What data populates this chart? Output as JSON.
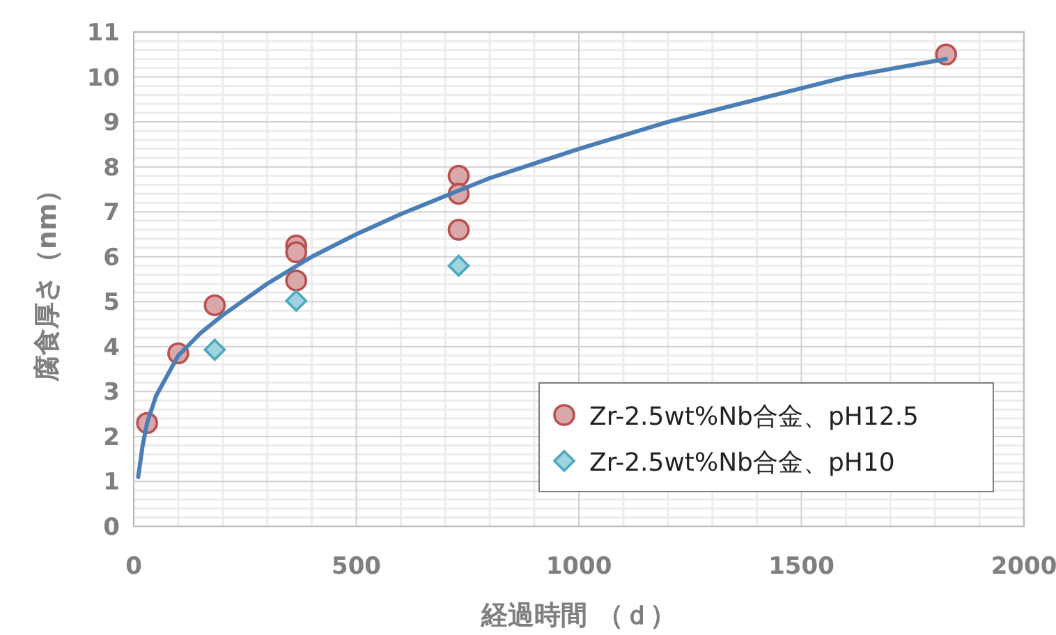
{
  "chart_data": {
    "type": "scatter",
    "xlabel": "経過時間 （ｄ）",
    "ylabel": "腐食厚さ（nm）",
    "xlim": [
      0,
      2000
    ],
    "xticks": [
      0,
      500,
      1000,
      1500,
      2000
    ],
    "ylim": [
      0,
      11
    ],
    "yticks": [
      0,
      1,
      2,
      3,
      4,
      5,
      6,
      7,
      8,
      9,
      10,
      11
    ],
    "grid": true,
    "legend": "bottom right",
    "series": [
      {
        "name": "Zr-2.5wt%Nb合金、pH12.5",
        "color": "#d9a8aa",
        "marker": "circle",
        "x": [
          30,
          100,
          182,
          365,
          365,
          365,
          730,
          730,
          730,
          1825
        ],
        "values": [
          2.3,
          3.85,
          4.92,
          6.25,
          6.1,
          5.47,
          7.8,
          7.4,
          6.6,
          10.5
        ]
      },
      {
        "name": "Zr-2.5wt%Nb合金、pH10",
        "color": "#9fd3de",
        "marker": "diamond",
        "x": [
          182,
          365,
          730
        ],
        "values": [
          3.93,
          5.02,
          5.8
        ]
      },
      {
        "type": "line",
        "color": "#4a7eb5",
        "marker": "none",
        "x": [
          10,
          20,
          30,
          50,
          100,
          150,
          200,
          300,
          400,
          500,
          600,
          700,
          800,
          1000,
          1200,
          1400,
          1600,
          1825
        ],
        "values": [
          1.1,
          1.8,
          2.3,
          2.9,
          3.8,
          4.3,
          4.7,
          5.4,
          6.0,
          6.5,
          6.95,
          7.35,
          7.75,
          8.4,
          9.0,
          9.5,
          10.0,
          10.4
        ]
      }
    ]
  }
}
